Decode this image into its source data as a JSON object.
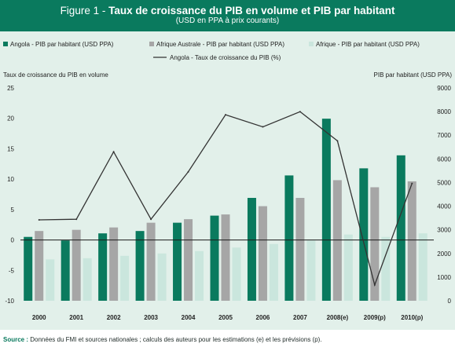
{
  "header": {
    "figure_label": "Figure 1 - ",
    "title": "Taux de croissance du PIB en volume et PIB par habitant",
    "subtitle": "(USD en PPA à prix courants)"
  },
  "source": {
    "label": "Source :",
    "text": "Données du FMI et sources nationales ; calculs des auteurs pour les estimations (e) et les prévisions (p)."
  },
  "colors": {
    "header_bg": "#0a7a5e",
    "panel_bg": "#e2f0ea",
    "angola_bar": "#0a7a5e",
    "afrique_australe_bar": "#a6a6a6",
    "afrique_bar": "#cae6dd",
    "line": "#333333"
  },
  "chart_data": {
    "type": "bar",
    "categories": [
      "2000",
      "2001",
      "2002",
      "2003",
      "2004",
      "2005",
      "2006",
      "2007",
      "2008(e)",
      "2009(p)",
      "2010(p)"
    ],
    "series": [
      {
        "name": "Angola - PIB par habitant (USD PPA)",
        "type": "bar",
        "axis": "right",
        "values": [
          2700,
          2550,
          2850,
          2950,
          3300,
          3600,
          4350,
          5300,
          7700,
          5600,
          6150
        ]
      },
      {
        "name": "Afrique Australe - PIB par habitant (USD PPA)",
        "type": "bar",
        "axis": "right",
        "values": [
          2950,
          3000,
          3100,
          3300,
          3450,
          3650,
          4000,
          4350,
          5100,
          4800,
          5050
        ]
      },
      {
        "name": "Afrique - PIB par habitant (USD PPA)",
        "type": "bar",
        "axis": "right",
        "values": [
          1750,
          1800,
          1900,
          2000,
          2100,
          2250,
          2400,
          2550,
          2800,
          2700,
          2850
        ]
      },
      {
        "name": "Angola - Taux de croissance du PIB (%)",
        "type": "line",
        "axis": "left",
        "values": [
          3.3,
          3.4,
          14.5,
          3.4,
          11.2,
          20.6,
          18.6,
          21.1,
          16.3,
          -7.4,
          9.3
        ]
      }
    ],
    "ylabel_left": "Taux de croissance du PIB en volume",
    "ylabel_right": "PIB par habitant (USD PPA)",
    "ylim_left": [
      -10,
      25
    ],
    "ylim_right": [
      0,
      9000
    ],
    "yticks_left": [
      "-10",
      "-5",
      "0",
      "5",
      "10",
      "15",
      "20",
      "25"
    ],
    "yticks_right": [
      "0",
      "1000",
      "2000",
      "3000",
      "4000",
      "5000",
      "6000",
      "7000",
      "8000",
      "9000"
    ],
    "grid": false,
    "legend_placement": "top"
  }
}
